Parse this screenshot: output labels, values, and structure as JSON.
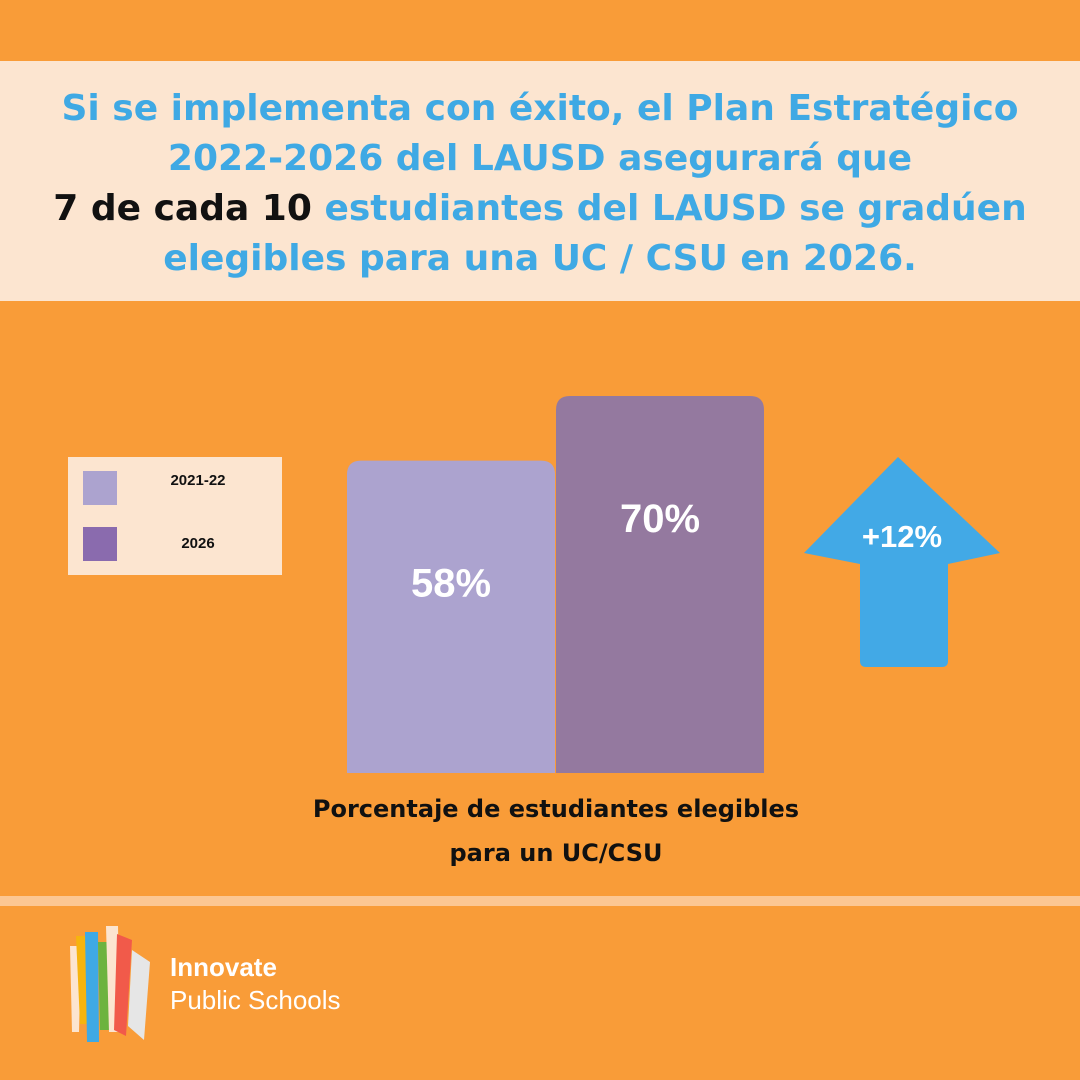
{
  "headline": {
    "line1": "Si se implementa con éxito, el Plan Estratégico",
    "line2": "2022-2026 del LAUSD asegurará que",
    "line3_emphasis": "7 de cada 10",
    "line3_rest": " estudiantes del LAUSD se gradúen",
    "line4": "elegibles para una UC / CSU en 2026."
  },
  "chart_data": {
    "type": "bar",
    "categories": [
      "2021-22",
      "2026"
    ],
    "values": [
      58,
      70
    ],
    "value_labels": [
      "58%",
      "70%"
    ],
    "colors": [
      "#ACA3CF",
      "#94799F"
    ],
    "legend": {
      "position": "left",
      "entries": [
        {
          "label": "2021-22",
          "color": "#ACA3CF"
        },
        {
          "label": "2026",
          "color": "#8A6BAE"
        }
      ]
    },
    "xlabel_line1": "Porcentaje de estudiantes elegibles",
    "xlabel_line2": "para un  UC/CSU",
    "ylim": [
      0,
      70
    ],
    "grid": false,
    "annotation": {
      "label": "+12%",
      "shape": "up-arrow",
      "color": "#42A9E6"
    }
  },
  "logo": {
    "name": "Innovate",
    "subtitle": "Public Schools"
  },
  "colors": {
    "background": "#F99C38",
    "band": "#FCE5D0",
    "accent_blue": "#3FA9E4"
  }
}
